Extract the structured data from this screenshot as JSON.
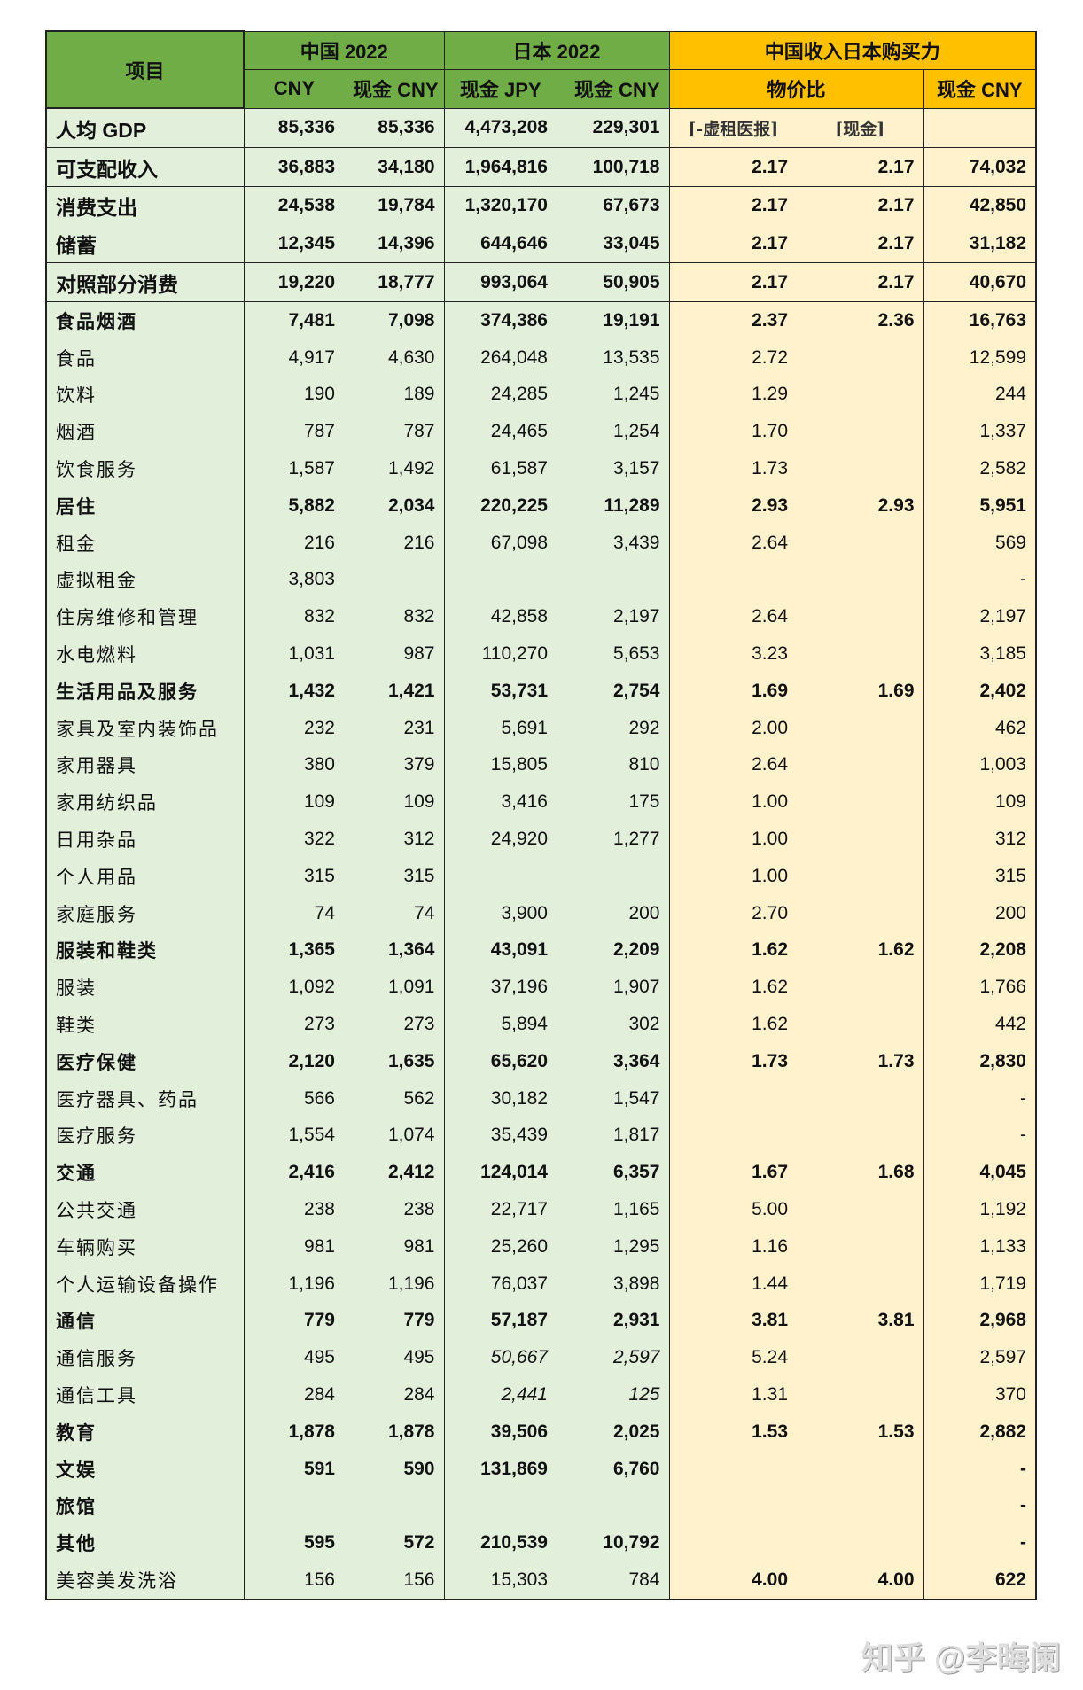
{
  "header": {
    "item": "项目",
    "china": "中国 2022",
    "japan": "日本 2022",
    "ppp": "中国收入日本购买力",
    "sub": [
      "CNY",
      "现金 CNY",
      "现金 JPY",
      "现金 CNY",
      "物价比",
      "现金 CNY"
    ]
  },
  "colors": {
    "header_green": "#70ad47",
    "header_orange": "#ffc000",
    "body_green": "#e2efda",
    "body_orange": "#fff2cc"
  },
  "rows": [
    {
      "label": "人均 GDP",
      "style": "big",
      "v": [
        "85,336",
        "85,336",
        "4,473,208",
        "229,301",
        "[-虚租医报]",
        "[现金]",
        ""
      ],
      "note": true
    },
    {
      "label": "可支配收入",
      "style": "big",
      "v": [
        "36,883",
        "34,180",
        "1,964,816",
        "100,718",
        "2.17",
        "2.17",
        "74,032"
      ]
    },
    {
      "label": "消费支出",
      "style": "grp",
      "v": [
        "24,538",
        "19,784",
        "1,320,170",
        "67,673",
        "2.17",
        "2.17",
        "42,850"
      ]
    },
    {
      "label": "储蓄",
      "style": "grp",
      "v": [
        "12,345",
        "14,396",
        "644,646",
        "33,045",
        "2.17",
        "2.17",
        "31,182"
      ]
    },
    {
      "label": "对照部分消费",
      "style": "big",
      "v": [
        "19,220",
        "18,777",
        "993,064",
        "50,905",
        "2.17",
        "2.17",
        "40,670"
      ]
    },
    {
      "label": "食品烟酒",
      "bold": true,
      "v": [
        "7,481",
        "7,098",
        "374,386",
        "19,191",
        "2.37",
        "2.36",
        "16,763"
      ]
    },
    {
      "label": "食品",
      "v": [
        "4,917",
        "4,630",
        "264,048",
        "13,535",
        "2.72",
        "",
        "12,599"
      ]
    },
    {
      "label": "饮料",
      "v": [
        "190",
        "189",
        "24,285",
        "1,245",
        "1.29",
        "",
        "244"
      ]
    },
    {
      "label": "烟酒",
      "v": [
        "787",
        "787",
        "24,465",
        "1,254",
        "1.70",
        "",
        "1,337"
      ]
    },
    {
      "label": "饮食服务",
      "v": [
        "1,587",
        "1,492",
        "61,587",
        "3,157",
        "1.73",
        "",
        "2,582"
      ]
    },
    {
      "label": "居住",
      "bold": true,
      "v": [
        "5,882",
        "2,034",
        "220,225",
        "11,289",
        "2.93",
        "2.93",
        "5,951"
      ]
    },
    {
      "label": "租金",
      "v": [
        "216",
        "216",
        "67,098",
        "3,439",
        "2.64",
        "",
        "569"
      ]
    },
    {
      "label": "虚拟租金",
      "v": [
        "3,803",
        "",
        "",
        "",
        "",
        "",
        "-"
      ]
    },
    {
      "label": "住房维修和管理",
      "v": [
        "832",
        "832",
        "42,858",
        "2,197",
        "2.64",
        "",
        "2,197"
      ]
    },
    {
      "label": "水电燃料",
      "v": [
        "1,031",
        "987",
        "110,270",
        "5,653",
        "3.23",
        "",
        "3,185"
      ]
    },
    {
      "label": "生活用品及服务",
      "bold": true,
      "v": [
        "1,432",
        "1,421",
        "53,731",
        "2,754",
        "1.69",
        "1.69",
        "2,402"
      ]
    },
    {
      "label": "家具及室内装饰品",
      "v": [
        "232",
        "231",
        "5,691",
        "292",
        "2.00",
        "",
        "462"
      ]
    },
    {
      "label": "家用器具",
      "v": [
        "380",
        "379",
        "15,805",
        "810",
        "2.64",
        "",
        "1,003"
      ]
    },
    {
      "label": "家用纺织品",
      "v": [
        "109",
        "109",
        "3,416",
        "175",
        "1.00",
        "",
        "109"
      ]
    },
    {
      "label": "日用杂品",
      "v": [
        "322",
        "312",
        "24,920",
        "1,277",
        "1.00",
        "",
        "312"
      ]
    },
    {
      "label": "个人用品",
      "v": [
        "315",
        "315",
        "",
        "",
        "1.00",
        "",
        "315"
      ]
    },
    {
      "label": "家庭服务",
      "v": [
        "74",
        "74",
        "3,900",
        "200",
        "2.70",
        "",
        "200"
      ]
    },
    {
      "label": "服装和鞋类",
      "bold": true,
      "v": [
        "1,365",
        "1,364",
        "43,091",
        "2,209",
        "1.62",
        "1.62",
        "2,208"
      ]
    },
    {
      "label": "服装",
      "v": [
        "1,092",
        "1,091",
        "37,196",
        "1,907",
        "1.62",
        "",
        "1,766"
      ]
    },
    {
      "label": "鞋类",
      "v": [
        "273",
        "273",
        "5,894",
        "302",
        "1.62",
        "",
        "442"
      ]
    },
    {
      "label": "医疗保健",
      "bold": true,
      "v": [
        "2,120",
        "1,635",
        "65,620",
        "3,364",
        "1.73",
        "1.73",
        "2,830"
      ]
    },
    {
      "label": "医疗器具、药品",
      "v": [
        "566",
        "562",
        "30,182",
        "1,547",
        "",
        "",
        "-"
      ]
    },
    {
      "label": "医疗服务",
      "v": [
        "1,554",
        "1,074",
        "35,439",
        "1,817",
        "",
        "",
        "-"
      ]
    },
    {
      "label": "交通",
      "bold": true,
      "v": [
        "2,416",
        "2,412",
        "124,014",
        "6,357",
        "1.67",
        "1.68",
        "4,045"
      ]
    },
    {
      "label": "公共交通",
      "v": [
        "238",
        "238",
        "22,717",
        "1,165",
        "5.00",
        "",
        "1,192"
      ]
    },
    {
      "label": "车辆购买",
      "v": [
        "981",
        "981",
        "25,260",
        "1,295",
        "1.16",
        "",
        "1,133"
      ]
    },
    {
      "label": "个人运输设备操作",
      "v": [
        "1,196",
        "1,196",
        "76,037",
        "3,898",
        "1.44",
        "",
        "1,719"
      ]
    },
    {
      "label": "通信",
      "bold": true,
      "v": [
        "779",
        "779",
        "57,187",
        "2,931",
        "3.81",
        "3.81",
        "2,968"
      ]
    },
    {
      "label": "通信服务",
      "italic_jp": true,
      "v": [
        "495",
        "495",
        "50,667",
        "2,597",
        "5.24",
        "",
        "2,597"
      ]
    },
    {
      "label": "通信工具",
      "italic_jp": true,
      "v": [
        "284",
        "284",
        "2,441",
        "125",
        "1.31",
        "",
        "370"
      ]
    },
    {
      "label": "教育",
      "bold": true,
      "v": [
        "1,878",
        "1,878",
        "39,506",
        "2,025",
        "1.53",
        "1.53",
        "2,882"
      ]
    },
    {
      "label": "文娱",
      "bold": true,
      "v": [
        "591",
        "590",
        "131,869",
        "6,760",
        "",
        "",
        "-"
      ]
    },
    {
      "label": "旅馆",
      "bold": true,
      "v": [
        "",
        "",
        "",
        "",
        "",
        "",
        "-"
      ]
    },
    {
      "label": "其他",
      "bold": true,
      "v": [
        "595",
        "572",
        "210,539",
        "10,792",
        "",
        "",
        "-"
      ]
    },
    {
      "label": "美容美发洗浴",
      "bold_ppp": true,
      "v": [
        "156",
        "156",
        "15,303",
        "784",
        "4.00",
        "4.00",
        "622"
      ]
    }
  ],
  "watermark": "知乎 @李晦阑"
}
